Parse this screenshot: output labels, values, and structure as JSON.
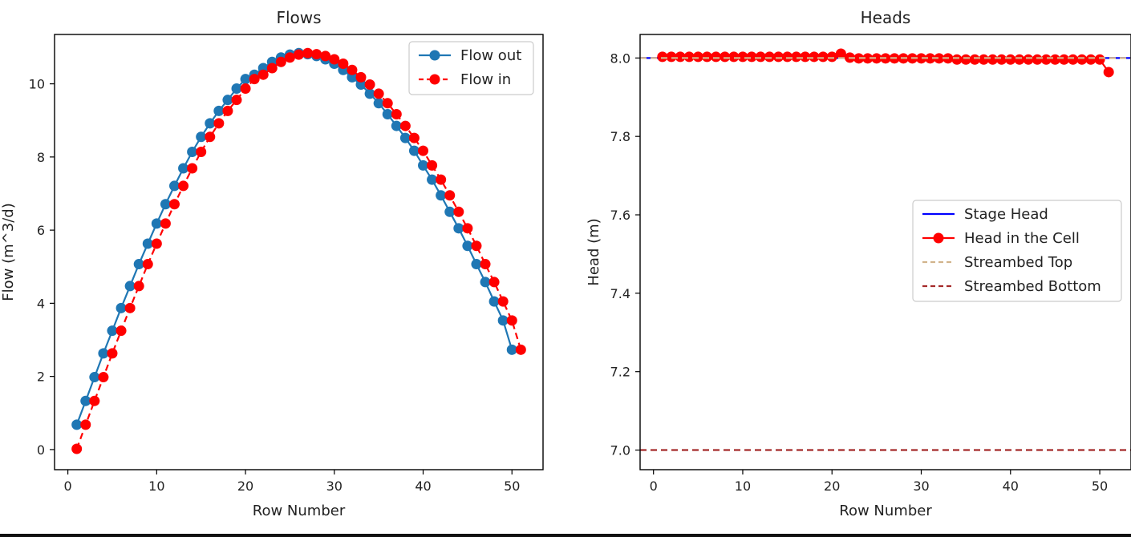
{
  "colors": {
    "flow_out": "#1f77b4",
    "flow_in": "#ff0000",
    "stage_head": "#0000ff",
    "head_cell": "#ff0000",
    "streambed_top": "#d2b48c",
    "streambed_bottom": "#a52a2a"
  },
  "chart_data": [
    {
      "type": "line",
      "title": "Flows",
      "xlabel": "Row Number",
      "ylabel": "Flow (m^3/d)",
      "xlim": [
        -1.5,
        53.5
      ],
      "ylim": [
        -0.55,
        11.35
      ],
      "xticks": [
        0,
        10,
        20,
        30,
        40,
        50
      ],
      "yticks": [
        0,
        2,
        4,
        6,
        8,
        10
      ],
      "grid": false,
      "legend": "top-right",
      "series": [
        {
          "name": "Flow out",
          "style": "solid-line-circle-markers",
          "color": "#1f77b4",
          "x": [
            1,
            2,
            3,
            4,
            5,
            6,
            7,
            8,
            9,
            10,
            11,
            12,
            13,
            14,
            15,
            16,
            17,
            18,
            19,
            20,
            21,
            22,
            23,
            24,
            25,
            26,
            27,
            28,
            29,
            30,
            31,
            32,
            33,
            34,
            35,
            36,
            37,
            38,
            39,
            40,
            41,
            42,
            43,
            44,
            45,
            46,
            47,
            48,
            49,
            50
          ],
          "y": [
            0.68,
            1.33,
            1.98,
            2.63,
            3.25,
            3.87,
            4.47,
            5.07,
            5.63,
            6.18,
            6.71,
            7.21,
            7.69,
            8.14,
            8.55,
            8.92,
            9.26,
            9.56,
            9.87,
            10.13,
            10.25,
            10.43,
            10.6,
            10.72,
            10.8,
            10.84,
            10.81,
            10.76,
            10.67,
            10.55,
            10.38,
            10.18,
            9.98,
            9.73,
            9.47,
            9.17,
            8.85,
            8.52,
            8.17,
            7.77,
            7.38,
            6.95,
            6.5,
            6.05,
            5.57,
            5.07,
            4.58,
            4.05,
            3.53,
            2.73
          ]
        },
        {
          "name": "Flow in",
          "style": "dashed-line-circle-markers",
          "color": "#ff0000",
          "x": [
            1,
            2,
            3,
            4,
            5,
            6,
            7,
            8,
            9,
            10,
            11,
            12,
            13,
            14,
            15,
            16,
            17,
            18,
            19,
            20,
            21,
            22,
            23,
            24,
            25,
            26,
            27,
            28,
            29,
            30,
            31,
            32,
            33,
            34,
            35,
            36,
            37,
            38,
            39,
            40,
            41,
            42,
            43,
            44,
            45,
            46,
            47,
            48,
            49,
            50,
            51
          ],
          "y": [
            0.02,
            0.68,
            1.33,
            1.98,
            2.63,
            3.25,
            3.87,
            4.47,
            5.07,
            5.63,
            6.18,
            6.71,
            7.21,
            7.69,
            8.14,
            8.55,
            8.92,
            9.26,
            9.56,
            9.87,
            10.13,
            10.25,
            10.43,
            10.6,
            10.72,
            10.8,
            10.84,
            10.81,
            10.76,
            10.67,
            10.55,
            10.38,
            10.18,
            9.98,
            9.73,
            9.47,
            9.17,
            8.85,
            8.52,
            8.17,
            7.77,
            7.38,
            6.95,
            6.5,
            6.05,
            5.57,
            5.07,
            4.58,
            4.05,
            3.53,
            2.73
          ]
        }
      ]
    },
    {
      "type": "line",
      "title": "Heads",
      "xlabel": "Row Number",
      "ylabel": "Head (m)",
      "xlim": [
        -1.5,
        53.5
      ],
      "ylim": [
        6.95,
        8.06
      ],
      "xticks": [
        0,
        10,
        20,
        30,
        40,
        50
      ],
      "yticks": [
        "7.0",
        "7.2",
        "7.4",
        "7.6",
        "7.8",
        "8.0"
      ],
      "grid": false,
      "legend": "center-right",
      "series": [
        {
          "name": "Stage Head",
          "style": "solid-line",
          "color": "#0000ff",
          "x": [
            -1.5,
            53.5
          ],
          "y": [
            8.0,
            8.0
          ]
        },
        {
          "name": "Head in the Cell",
          "style": "solid-line-circle-markers",
          "color": "#ff0000",
          "x": [
            1,
            2,
            3,
            4,
            5,
            6,
            7,
            8,
            9,
            10,
            11,
            12,
            13,
            14,
            15,
            16,
            17,
            18,
            19,
            20,
            21,
            22,
            23,
            24,
            25,
            26,
            27,
            28,
            29,
            30,
            31,
            32,
            33,
            34,
            35,
            36,
            37,
            38,
            39,
            40,
            41,
            42,
            43,
            44,
            45,
            46,
            47,
            48,
            49,
            50,
            51
          ],
          "y": [
            8.003,
            8.003,
            8.003,
            8.003,
            8.003,
            8.003,
            8.003,
            8.003,
            8.003,
            8.003,
            8.003,
            8.003,
            8.003,
            8.003,
            8.003,
            8.003,
            8.003,
            8.003,
            8.003,
            8.003,
            8.011,
            8.001,
            7.999,
            7.999,
            7.999,
            7.999,
            7.999,
            7.999,
            7.999,
            7.999,
            7.999,
            7.999,
            7.999,
            7.996,
            7.996,
            7.996,
            7.996,
            7.996,
            7.996,
            7.996,
            7.996,
            7.996,
            7.996,
            7.996,
            7.996,
            7.996,
            7.996,
            7.996,
            7.996,
            7.996,
            7.964
          ]
        },
        {
          "name": "Streambed Top",
          "style": "dashed-line",
          "color": "#d2b48c",
          "x": [
            -1.5,
            53.5
          ],
          "y": [
            8.0,
            8.0
          ]
        },
        {
          "name": "Streambed Bottom",
          "style": "dashed-line",
          "color": "#a52a2a",
          "x": [
            -1.5,
            53.5
          ],
          "y": [
            7.0,
            7.0
          ]
        }
      ]
    }
  ]
}
